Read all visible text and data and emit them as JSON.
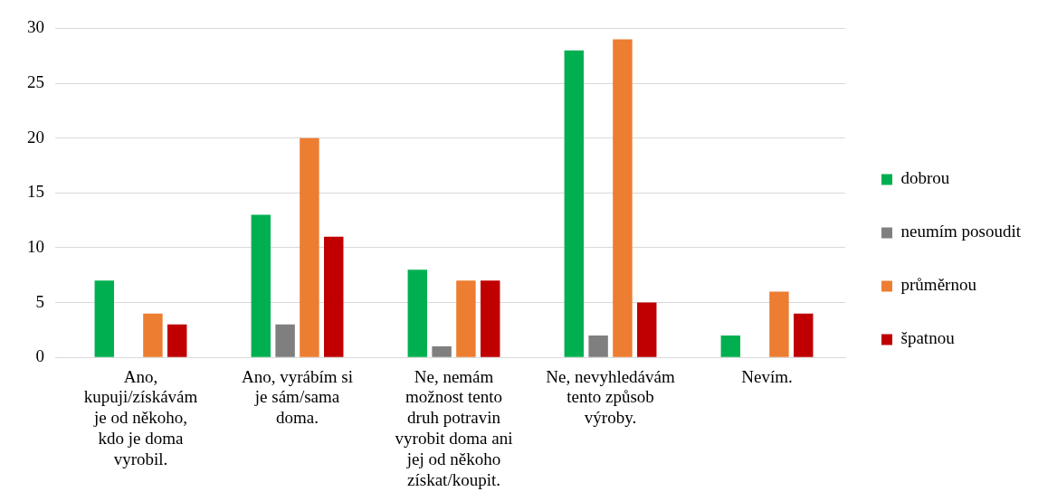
{
  "chart_data": {
    "type": "bar",
    "categories": [
      "Ano, kupuji/získávám je od někoho, kdo je doma vyrobil.",
      "Ano, vyrábím si je sám/sama doma.",
      "Ne, nemám možnost tento druh potravin vyrobit doma ani jej od někoho získat/koupit.",
      "Ne, nevyhledávám tento způsob výroby.",
      "Nevím."
    ],
    "series": [
      {
        "name": "dobrou",
        "color": "#00b050",
        "values": [
          7,
          13,
          8,
          28,
          2
        ]
      },
      {
        "name": "neumím posoudit",
        "color": "#7f7f7f",
        "values": [
          0,
          3,
          1,
          2,
          0
        ]
      },
      {
        "name": "průměrnou",
        "color": "#ed7d31",
        "values": [
          4,
          20,
          7,
          29,
          6
        ]
      },
      {
        "name": "špatnou",
        "color": "#c00000",
        "values": [
          3,
          11,
          7,
          5,
          4
        ]
      }
    ],
    "ylim": [
      0,
      30
    ],
    "yticks": [
      0,
      5,
      10,
      15,
      20,
      25,
      30
    ],
    "grid": "y",
    "legend": "right"
  }
}
